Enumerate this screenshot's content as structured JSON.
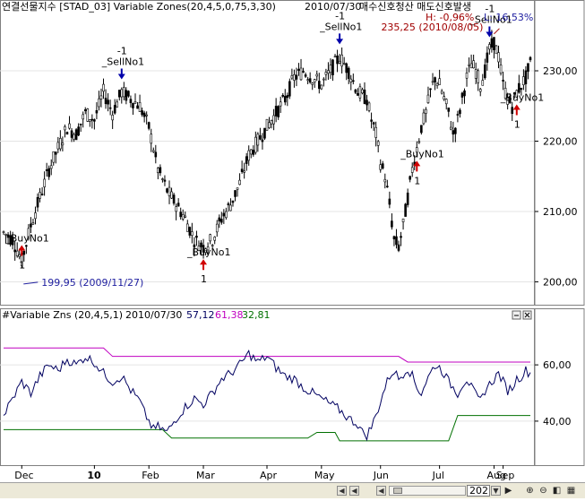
{
  "upper_header": {
    "title": "연결선물지수 [STAD_03] Variable Zones(20,4,5,0,75,3,30)",
    "date": "2010/07/30",
    "signals": "매수신호청산 매도신호발생",
    "high_label": "H: -0,96%",
    "low_label": "L: 16,53%"
  },
  "lower_header": {
    "title": "#Variable Zns",
    "params": "(20,4,5,1)",
    "date": "2010/07/30",
    "value1": "57,12",
    "value2": "61,38",
    "value3": "32,81"
  },
  "colors": {
    "up_signal": "#d00000",
    "down_signal": "#0000aa",
    "upper_band": "#c000c0",
    "lower_band": "#007000",
    "oscillator": "#000060",
    "price": "#000000",
    "annotation": "#2020a0",
    "high_annotation": "#a00000"
  },
  "chart_data": [
    {
      "type": "candlestick",
      "series": [
        {
          "name": "연결선물지수"
        }
      ],
      "x_axis": {
        "ticks": [
          "Dec",
          "10",
          "Feb",
          "Mar",
          "Apr",
          "May",
          "Jun",
          "Jul",
          "Aug",
          "Sep"
        ]
      },
      "y_axis": {
        "ticks": [
          "200,00",
          "210,00",
          "220,00",
          "230,00"
        ],
        "range": [
          197,
          236.5
        ]
      },
      "price_path": [
        [
          0,
          207
        ],
        [
          4,
          206
        ],
        [
          8,
          203
        ],
        [
          12,
          208
        ],
        [
          16,
          212
        ],
        [
          20,
          216
        ],
        [
          24,
          219
        ],
        [
          28,
          222
        ],
        [
          32,
          221
        ],
        [
          36,
          224
        ],
        [
          40,
          223
        ],
        [
          44,
          227
        ],
        [
          48,
          224
        ],
        [
          52,
          227
        ],
        [
          56,
          226
        ],
        [
          60,
          225
        ],
        [
          64,
          222
        ],
        [
          66,
          219
        ],
        [
          68,
          216
        ],
        [
          72,
          213
        ],
        [
          76,
          211
        ],
        [
          80,
          209
        ],
        [
          84,
          206
        ],
        [
          88,
          205
        ],
        [
          92,
          206
        ],
        [
          96,
          209
        ],
        [
          100,
          211
        ],
        [
          104,
          214
        ],
        [
          108,
          218
        ],
        [
          112,
          220
        ],
        [
          116,
          222
        ],
        [
          120,
          224
        ],
        [
          124,
          226
        ],
        [
          128,
          229
        ],
        [
          132,
          230
        ],
        [
          136,
          229
        ],
        [
          140,
          228
        ],
        [
          144,
          230
        ],
        [
          148,
          232
        ],
        [
          152,
          230
        ],
        [
          156,
          227
        ],
        [
          160,
          226
        ],
        [
          162,
          223
        ],
        [
          164,
          221
        ],
        [
          166,
          217
        ],
        [
          168,
          215
        ],
        [
          170,
          211
        ],
        [
          172,
          206
        ],
        [
          174,
          205
        ],
        [
          176,
          208
        ],
        [
          178,
          212
        ],
        [
          180,
          216
        ],
        [
          182,
          219
        ],
        [
          184,
          222
        ],
        [
          186,
          224
        ],
        [
          188,
          227
        ],
        [
          190,
          229
        ],
        [
          192,
          228
        ],
        [
          194,
          226
        ],
        [
          196,
          224
        ],
        [
          198,
          221
        ],
        [
          200,
          223
        ],
        [
          202,
          226
        ],
        [
          204,
          229
        ],
        [
          206,
          231
        ],
        [
          208,
          230
        ],
        [
          210,
          228
        ],
        [
          212,
          230
        ],
        [
          214,
          233
        ],
        [
          216,
          234
        ],
        [
          218,
          232
        ],
        [
          220,
          228
        ],
        [
          222,
          226
        ],
        [
          224,
          225
        ],
        [
          226,
          227
        ],
        [
          228,
          228
        ],
        [
          230,
          229
        ],
        [
          232,
          231
        ]
      ],
      "annotations": [
        {
          "label": "199,95 (2009/11/27)",
          "x": 8,
          "y": 199.95
        },
        {
          "label": "235,25 (2010/08/05)",
          "x": 216,
          "y": 235.25
        }
      ],
      "signals": [
        {
          "type": "buy",
          "label": "_BuyNo1",
          "count": "1",
          "x": 8,
          "y": 207
        },
        {
          "type": "sell",
          "label": "_SellNo1",
          "count": "-1",
          "x": 52,
          "y": 227
        },
        {
          "type": "buy",
          "label": "_BuyNo1",
          "count": "1",
          "x": 88,
          "y": 205
        },
        {
          "type": "sell",
          "label": "_SellNo1",
          "count": "-1",
          "x": 148,
          "y": 232
        },
        {
          "type": "buy",
          "label": "_BuyNo1",
          "count": "1",
          "x": 182,
          "y": 219
        },
        {
          "type": "sell",
          "label": "_SellNo1",
          "count": "-1",
          "x": 214,
          "y": 233
        },
        {
          "type": "buy",
          "label": "_BuyNo1",
          "count": "1",
          "x": 226,
          "y": 227
        }
      ]
    },
    {
      "type": "line",
      "series": [
        {
          "name": "Variable Zns"
        }
      ],
      "y_axis": {
        "ticks": [
          "40,00",
          "60,00"
        ],
        "range": [
          25,
          75
        ]
      },
      "oscillator": [
        [
          0,
          42
        ],
        [
          4,
          48
        ],
        [
          8,
          54
        ],
        [
          12,
          50
        ],
        [
          16,
          56
        ],
        [
          20,
          60
        ],
        [
          24,
          58
        ],
        [
          28,
          62
        ],
        [
          32,
          60
        ],
        [
          36,
          63
        ],
        [
          40,
          61
        ],
        [
          44,
          57
        ],
        [
          48,
          54
        ],
        [
          52,
          56
        ],
        [
          56,
          51
        ],
        [
          60,
          47
        ],
        [
          62,
          43
        ],
        [
          64,
          40
        ],
        [
          66,
          37
        ],
        [
          68,
          38
        ],
        [
          72,
          36
        ],
        [
          76,
          41
        ],
        [
          80,
          45
        ],
        [
          84,
          48
        ],
        [
          88,
          46
        ],
        [
          92,
          50
        ],
        [
          96,
          55
        ],
        [
          100,
          57
        ],
        [
          104,
          60
        ],
        [
          108,
          64
        ],
        [
          112,
          61
        ],
        [
          116,
          63
        ],
        [
          120,
          59
        ],
        [
          124,
          56
        ],
        [
          128,
          55
        ],
        [
          132,
          52
        ],
        [
          136,
          50
        ],
        [
          140,
          48
        ],
        [
          144,
          46
        ],
        [
          148,
          44
        ],
        [
          152,
          41
        ],
        [
          156,
          39
        ],
        [
          158,
          36
        ],
        [
          160,
          35
        ],
        [
          162,
          38
        ],
        [
          164,
          42
        ],
        [
          166,
          47
        ],
        [
          168,
          52
        ],
        [
          170,
          56
        ],
        [
          172,
          58
        ],
        [
          174,
          55
        ],
        [
          176,
          57
        ],
        [
          178,
          59
        ],
        [
          180,
          56
        ],
        [
          182,
          52
        ],
        [
          184,
          50
        ],
        [
          186,
          54
        ],
        [
          188,
          57
        ],
        [
          190,
          60
        ],
        [
          192,
          59
        ],
        [
          194,
          57
        ],
        [
          196,
          54
        ],
        [
          198,
          52
        ],
        [
          200,
          50
        ],
        [
          202,
          53
        ],
        [
          204,
          55
        ],
        [
          206,
          52
        ],
        [
          208,
          49
        ],
        [
          210,
          47
        ],
        [
          212,
          51
        ],
        [
          214,
          53
        ],
        [
          216,
          55
        ],
        [
          218,
          57
        ],
        [
          220,
          54
        ],
        [
          222,
          51
        ],
        [
          224,
          52
        ],
        [
          226,
          55
        ],
        [
          228,
          56
        ],
        [
          230,
          58
        ],
        [
          232,
          57
        ]
      ],
      "upper_band": [
        [
          0,
          66
        ],
        [
          44,
          66
        ],
        [
          48,
          63
        ],
        [
          150,
          63
        ],
        [
          174,
          63
        ],
        [
          178,
          61
        ],
        [
          232,
          61
        ]
      ],
      "lower_band": [
        [
          0,
          37
        ],
        [
          70,
          37
        ],
        [
          74,
          34
        ],
        [
          134,
          34
        ],
        [
          138,
          36
        ],
        [
          146,
          36
        ],
        [
          148,
          33
        ],
        [
          196,
          33
        ],
        [
          200,
          42
        ],
        [
          232,
          42
        ]
      ]
    }
  ],
  "scrollbar": {
    "value": "202"
  }
}
